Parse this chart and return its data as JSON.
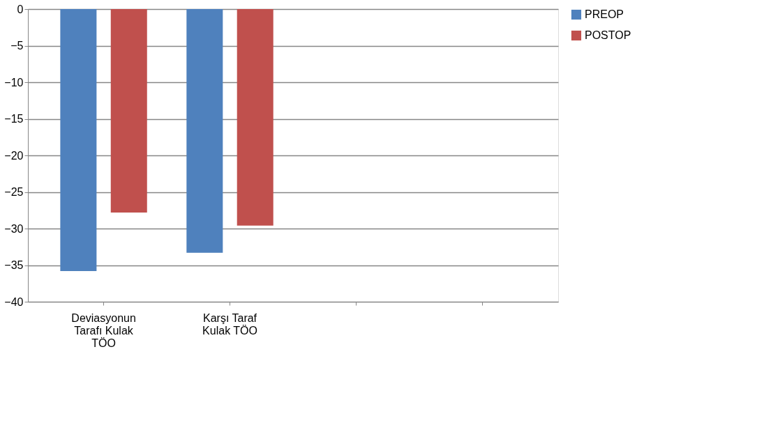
{
  "chart_data": {
    "type": "bar",
    "categories": [
      "Deviasyonun Tarafı Kulak TÖO",
      "Karşı Taraf Kulak TÖO",
      null,
      null
    ],
    "series": [
      {
        "name": "PREOP",
        "color": "#4f81bd",
        "values": [
          -35.8,
          -33.3,
          null,
          null
        ]
      },
      {
        "name": "POSTOP",
        "color": "#c0504d",
        "values": [
          -27.8,
          -29.6,
          null,
          null
        ]
      }
    ],
    "ylim": [
      -40,
      0
    ],
    "yticks": [
      -40,
      -35,
      -30,
      -25,
      -20,
      -15,
      -10,
      -5,
      0
    ],
    "grid": "y",
    "legend": "right"
  }
}
